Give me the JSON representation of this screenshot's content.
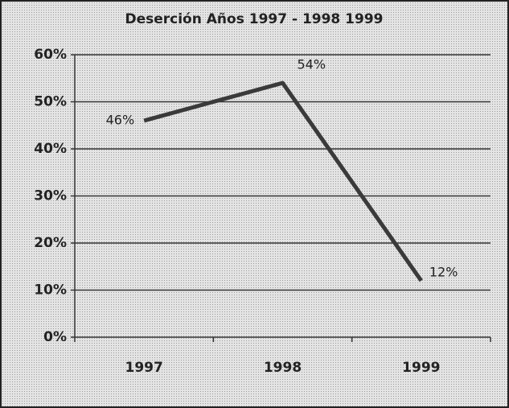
{
  "chart_data": {
    "type": "line",
    "title": "Deserción Años 1997 - 1998 1999",
    "categories": [
      "1997",
      "1998",
      "1999"
    ],
    "values": [
      46,
      54,
      12
    ],
    "value_labels": [
      "46%",
      "54%",
      "12%"
    ],
    "color": "#3a3a3a",
    "ylim": [
      0,
      60
    ],
    "yticks": [
      {
        "value": 0,
        "label": "0%"
      },
      {
        "value": 10,
        "label": "10%"
      },
      {
        "value": 20,
        "label": "20%"
      },
      {
        "value": 30,
        "label": "30%"
      },
      {
        "value": 40,
        "label": "40%"
      },
      {
        "value": 50,
        "label": "50%"
      },
      {
        "value": 60,
        "label": "60%"
      }
    ],
    "grid": true
  }
}
